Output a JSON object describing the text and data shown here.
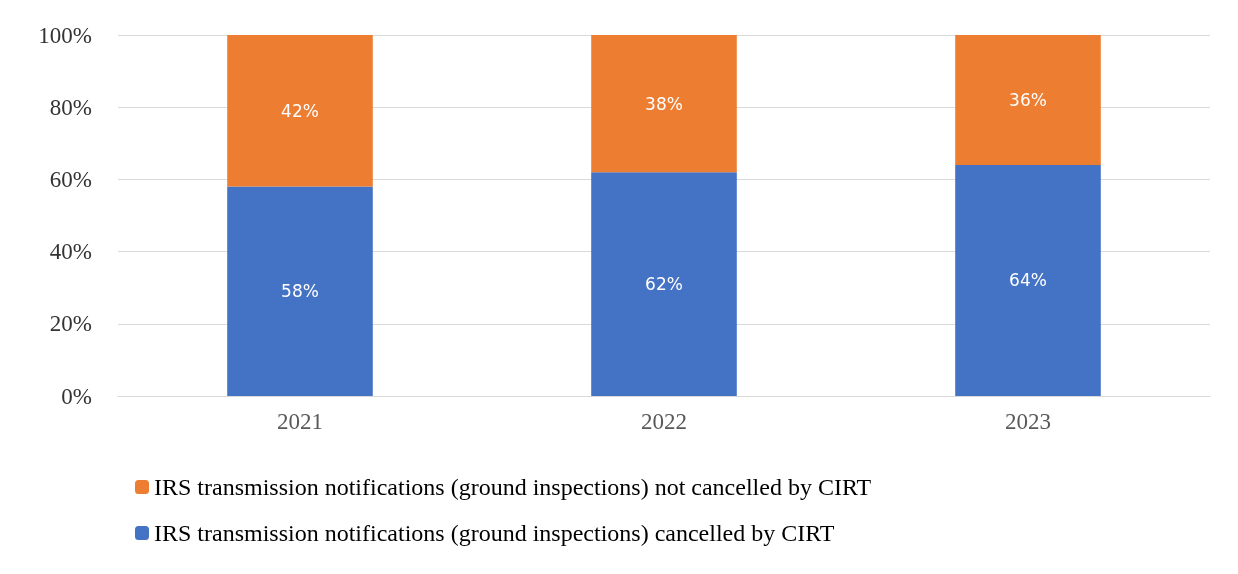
{
  "chart_data": {
    "type": "bar",
    "stacked": true,
    "categories": [
      "2021",
      "2022",
      "2023"
    ],
    "series": [
      {
        "name": "IRS transmission notifications (ground inspections) cancelled by CIRT",
        "color": "#4472c4",
        "values": [
          58,
          62,
          64
        ],
        "value_labels": [
          "58%",
          "62%",
          "64%"
        ]
      },
      {
        "name": "IRS transmission notifications (ground inspections) not cancelled by CIRT",
        "color": "#ed7d31",
        "values": [
          42,
          38,
          36
        ],
        "value_labels": [
          "42%",
          "38%",
          "36%"
        ]
      }
    ],
    "ylim": [
      0,
      100
    ],
    "yticks": [
      {
        "value": 0,
        "label": "0%"
      },
      {
        "value": 20,
        "label": "20%"
      },
      {
        "value": 40,
        "label": "40%"
      },
      {
        "value": 60,
        "label": "60%"
      },
      {
        "value": 80,
        "label": "80%"
      },
      {
        "value": 100,
        "label": "100%"
      }
    ],
    "grid": "y",
    "legend": "bottom"
  }
}
